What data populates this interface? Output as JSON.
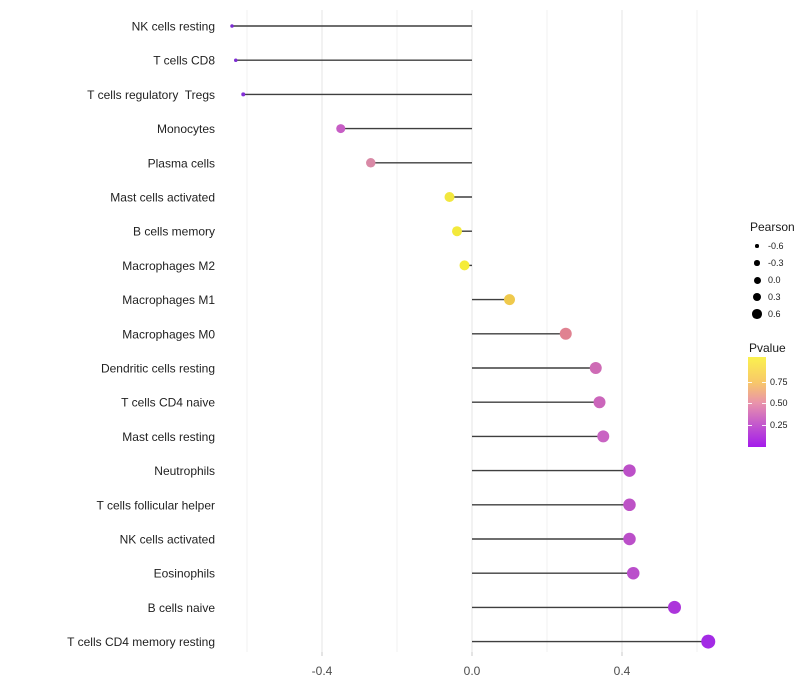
{
  "chart_data": {
    "type": "scatter",
    "subtype": "lollipop",
    "orientation": "horizontal",
    "title": "",
    "xlabel": "",
    "ylabel": "",
    "xlim": [
      -0.667,
      0.728
    ],
    "grid": true,
    "baseline": 0,
    "x_ticks": [
      {
        "value": -0.4,
        "label": "-0.4"
      },
      {
        "value": 0.0,
        "label": "0.0"
      },
      {
        "value": 0.4,
        "label": "0.4"
      }
    ],
    "x_minor_ticks": [
      -0.6,
      -0.2,
      0.2,
      0.6
    ],
    "points": [
      {
        "label": "NK cells resting",
        "pearson": -0.64,
        "size": 3.5,
        "color": "#7B2BD1"
      },
      {
        "label": "T cells CD8",
        "pearson": -0.63,
        "size": 3.5,
        "color": "#7D2CD3"
      },
      {
        "label": "T cells regulatory  Tregs",
        "pearson": -0.61,
        "size": 4,
        "color": "#8430D8"
      },
      {
        "label": "Monocytes",
        "pearson": -0.35,
        "size": 9,
        "color": "#C75EC5"
      },
      {
        "label": "Plasma cells",
        "pearson": -0.27,
        "size": 9.5,
        "color": "#D989A6"
      },
      {
        "label": "Mast cells activated",
        "pearson": -0.06,
        "size": 10,
        "color": "#F2E73E"
      },
      {
        "label": "B cells memory",
        "pearson": -0.04,
        "size": 10,
        "color": "#F3E93C"
      },
      {
        "label": "Macrophages M2",
        "pearson": -0.02,
        "size": 10,
        "color": "#F5EC39"
      },
      {
        "label": "Macrophages M1",
        "pearson": 0.1,
        "size": 11,
        "color": "#EFC94C"
      },
      {
        "label": "Macrophages M0",
        "pearson": 0.25,
        "size": 12,
        "color": "#E08291"
      },
      {
        "label": "Dendritic cells resting",
        "pearson": 0.33,
        "size": 12,
        "color": "#CE6BB5"
      },
      {
        "label": "T cells CD4 naive",
        "pearson": 0.34,
        "size": 12,
        "color": "#CB66BB"
      },
      {
        "label": "Mast cells resting",
        "pearson": 0.35,
        "size": 12,
        "color": "#C964C3"
      },
      {
        "label": "Neutrophils",
        "pearson": 0.42,
        "size": 12.5,
        "color": "#BC50C8"
      },
      {
        "label": "T cells follicular helper",
        "pearson": 0.42,
        "size": 12.5,
        "color": "#BD53C6"
      },
      {
        "label": "NK cells activated",
        "pearson": 0.42,
        "size": 12.5,
        "color": "#BB4FC9"
      },
      {
        "label": "Eosinophils",
        "pearson": 0.43,
        "size": 12.5,
        "color": "#BA4ECB"
      },
      {
        "label": "B cells naive",
        "pearson": 0.54,
        "size": 13,
        "color": "#AC35DB"
      },
      {
        "label": "T cells CD4 memory resting",
        "pearson": 0.63,
        "size": 14,
        "color": "#A32BE5"
      }
    ],
    "legend": {
      "size_legend": {
        "title": "Pearson",
        "dot_color": "#000000",
        "entries": [
          {
            "label": "-0.6",
            "size": 3.5
          },
          {
            "label": "-0.3",
            "size": 5.5
          },
          {
            "label": "0.0",
            "size": 7
          },
          {
            "label": "0.3",
            "size": 8.5
          },
          {
            "label": "0.6",
            "size": 9.5
          }
        ]
      },
      "color_legend": {
        "title": "Pvalue",
        "gradient": [
          {
            "color": "#FAF14E",
            "pos": 0
          },
          {
            "color": "#F8C869",
            "pos": 28
          },
          {
            "color": "#E993AB",
            "pos": 51
          },
          {
            "color": "#C358CD",
            "pos": 75
          },
          {
            "color": "#A41BEB",
            "pos": 100
          }
        ],
        "ticks": [
          {
            "label": "0.75",
            "pos": 27.8
          },
          {
            "label": "0.50",
            "pos": 51.1
          },
          {
            "label": "0.25",
            "pos": 75.6
          }
        ]
      }
    },
    "colors": {
      "stem": "#3F3F3F",
      "grid_major": "#E4E4E4",
      "grid_minor": "#F1F1F1",
      "axis_tick": "#C9C9C9",
      "x_tick_text": "#4D4D4D",
      "y_label_text": "#1F1F1F",
      "background": "#FFFFFF"
    }
  }
}
